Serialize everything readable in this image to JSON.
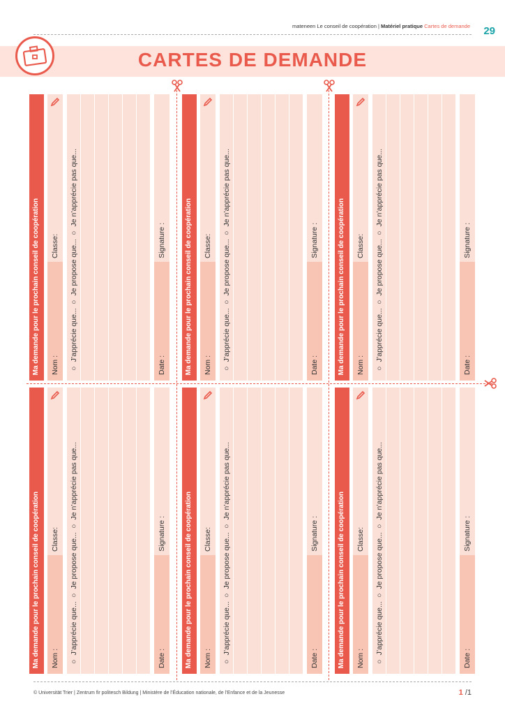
{
  "header": {
    "series": "mateneen Le conseil de coopération",
    "separator": " | ",
    "section": "Matériel pratique",
    "topic": "Cartes de demande",
    "page_number": "29"
  },
  "title": "CARTES DE DEMANDE",
  "card_labels": {
    "title": "Ma demande pour le prochain conseil de coopération",
    "nom": "Nom :",
    "classe": "Classe:",
    "options": "○  J’apprécie que...   ○  Je propose que...   ○  Je n’apprécie pas que...",
    "date": "Date :",
    "signature": "Signature :"
  },
  "card_count": 6,
  "colors": {
    "accent": "#e95a4c",
    "light": "#fbe0d8",
    "mid": "#f8c4b4",
    "page_number": "#1aa3a8"
  },
  "footer": {
    "credits": "© Universität Trier | Zentrum fir politesch Bildung | Ministère de l’Éducation nationale, de l’Enfance et de la Jeunesse",
    "page_current": "1",
    "page_total": " /1"
  }
}
